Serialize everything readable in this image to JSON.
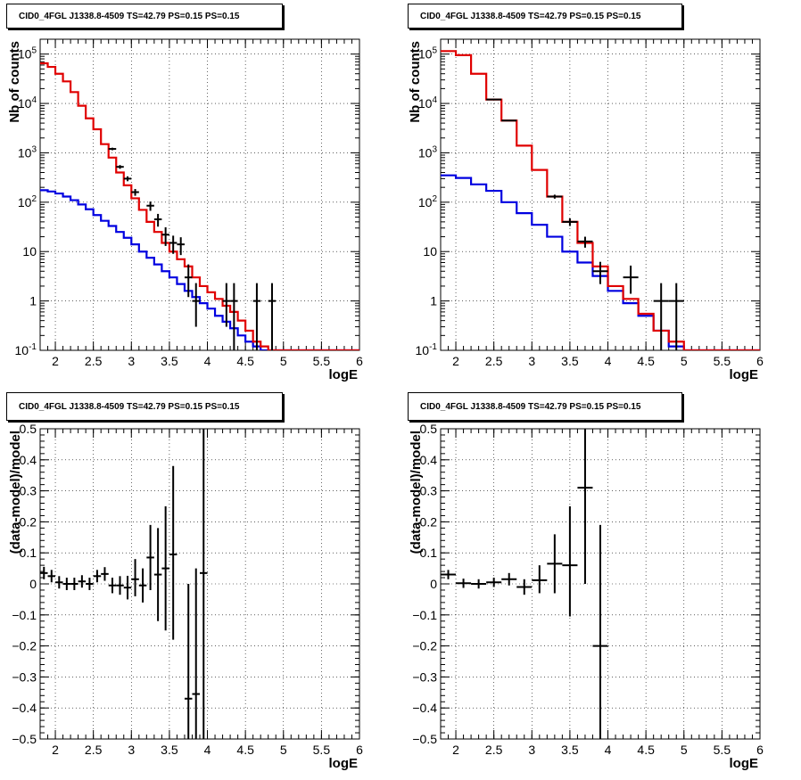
{
  "colors": {
    "data": "#000000",
    "total_model": "#e00000",
    "component_model": "#0000e0",
    "grid": "#000000"
  },
  "chart_data": [
    {
      "type": "line",
      "title": "CID0_4FGL J1338.8-4509 TS=42.79 PS=0.15 PS=0.15",
      "xlabel": "logE",
      "ylabel": "Nb of counts",
      "xlim": [
        1.8,
        6.0
      ],
      "ylim": [
        0.1,
        200000
      ],
      "ylog": true,
      "grid": true,
      "x_ticks": [
        "2",
        "2.5",
        "3",
        "3.5",
        "4",
        "4.5",
        "5",
        "5.5",
        "6"
      ],
      "y_ticks": [
        "10^-1",
        "1",
        "10",
        "10^2",
        "10^3",
        "10^4",
        "10^5"
      ],
      "bin_edges": [
        1.8,
        1.9,
        2.0,
        2.1,
        2.2,
        2.3,
        2.4,
        2.5,
        2.6,
        2.7,
        2.8,
        2.9,
        3.0,
        3.1,
        3.2,
        3.3,
        3.4,
        3.5,
        3.6,
        3.7,
        3.8,
        3.9,
        4.0,
        4.1,
        4.2,
        4.3,
        4.4,
        4.5,
        4.6,
        4.7,
        4.8,
        4.9,
        5.0,
        5.1,
        5.2,
        5.3,
        5.4,
        5.5,
        5.6,
        5.7,
        5.8,
        5.9,
        6.0
      ],
      "series": [
        {
          "name": "",
          "color": "#e00000",
          "values": [
            65000,
            55000,
            40000,
            28000,
            17000,
            9000,
            5000,
            3000,
            1500,
            800,
            400,
            220,
            120,
            70,
            40,
            25,
            15,
            10,
            7,
            5,
            3,
            2,
            1.5,
            1.1,
            0.8,
            0.6,
            0.4,
            0.25,
            0.15,
            0.12,
            0.1,
            0.1,
            0.1,
            0.1,
            0.1,
            0.1,
            0.1,
            0.1,
            0.1,
            0.1,
            0.1,
            0.1
          ]
        },
        {
          "name": "",
          "color": "#0000e0",
          "values": [
            175,
            165,
            150,
            130,
            110,
            90,
            72,
            55,
            42,
            33,
            25,
            19,
            14,
            10,
            7.5,
            5.5,
            4,
            3,
            2.2,
            1.6,
            1.2,
            0.9,
            0.7,
            0.5,
            0.38,
            0.28,
            0.2,
            0.15,
            0.12,
            0.1,
            0.1,
            0.1,
            0.1,
            0.1,
            0.1,
            0.1,
            0.1,
            0.1,
            0.1,
            0.1,
            0.1,
            0.1
          ]
        }
      ],
      "points": [
        {
          "x": 2.75,
          "y": 1200,
          "xerr": 0.05,
          "ylo": 1130,
          "yhi": 1270
        },
        {
          "x": 2.85,
          "y": 520,
          "xerr": 0.05,
          "ylo": 475,
          "yhi": 565
        },
        {
          "x": 2.95,
          "y": 300,
          "xerr": 0.05,
          "ylo": 266,
          "yhi": 334
        },
        {
          "x": 3.05,
          "y": 160,
          "xerr": 0.05,
          "ylo": 135,
          "yhi": 185
        },
        {
          "x": 3.25,
          "y": 85,
          "xerr": 0.05,
          "ylo": 67,
          "yhi": 103
        },
        {
          "x": 3.35,
          "y": 45,
          "xerr": 0.05,
          "ylo": 32,
          "yhi": 58
        },
        {
          "x": 3.45,
          "y": 22,
          "xerr": 0.05,
          "ylo": 13,
          "yhi": 31
        },
        {
          "x": 3.55,
          "y": 15,
          "xerr": 0.05,
          "ylo": 9,
          "yhi": 21
        },
        {
          "x": 3.65,
          "y": 14,
          "xerr": 0.05,
          "ylo": 8.5,
          "yhi": 19.5
        },
        {
          "x": 3.75,
          "y": 3,
          "xerr": 0.05,
          "ylo": 1.2,
          "yhi": 5.5
        },
        {
          "x": 3.85,
          "y": 1,
          "xerr": 0.05,
          "ylo": 0.3,
          "yhi": 2.3
        },
        {
          "x": 4.25,
          "y": 1,
          "xerr": 0.05,
          "ylo": 0.3,
          "yhi": 2.3
        },
        {
          "x": 4.35,
          "y": 1,
          "xerr": 0.05,
          "ylo": 0.1,
          "yhi": 2.3
        },
        {
          "x": 4.65,
          "y": 1,
          "xerr": 0.05,
          "ylo": 0.1,
          "yhi": 2.3
        },
        {
          "x": 4.85,
          "y": 1,
          "xerr": 0.05,
          "ylo": 0.1,
          "yhi": 2.3
        }
      ]
    },
    {
      "type": "line",
      "title": "CID0_4FGL J1338.8-4509 TS=42.79 PS=0.15 PS=0.15",
      "xlabel": "logE",
      "ylabel": "Nb of counts",
      "xlim": [
        1.8,
        6.0
      ],
      "ylim": [
        0.1,
        200000
      ],
      "ylog": true,
      "grid": true,
      "x_ticks": [
        "2",
        "2.5",
        "3",
        "3.5",
        "4",
        "4.5",
        "5",
        "5.5",
        "6"
      ],
      "y_ticks": [
        "10^-1",
        "1",
        "10",
        "10^2",
        "10^3",
        "10^4",
        "10^5"
      ],
      "bin_edges": [
        1.8,
        2.0,
        2.2,
        2.4,
        2.6,
        2.8,
        3.0,
        3.2,
        3.4,
        3.6,
        3.8,
        4.0,
        4.2,
        4.4,
        4.6,
        4.8,
        5.0,
        5.2,
        5.4,
        5.6,
        5.8,
        6.0
      ],
      "series": [
        {
          "name": "",
          "color": "#e00000",
          "values": [
            115000,
            95000,
            40000,
            12000,
            4500,
            1400,
            450,
            130,
            40,
            15,
            5,
            2,
            1.1,
            0.55,
            0.25,
            0.15,
            0.1,
            0.1,
            0.1,
            0.1,
            0.1
          ]
        },
        {
          "name": "",
          "color": "#0000e0",
          "values": [
            350,
            310,
            230,
            170,
            100,
            60,
            35,
            20,
            10,
            6,
            3.2,
            1.6,
            0.9,
            0.5,
            0.25,
            0.12,
            0.1,
            0.1,
            0.1,
            0.1,
            0.1
          ]
        }
      ],
      "points": [
        {
          "x": 2.5,
          "y": 12000,
          "xerr": 0.1,
          "ylo": 11800,
          "yhi": 12200
        },
        {
          "x": 2.7,
          "y": 4500,
          "xerr": 0.1,
          "ylo": 4400,
          "yhi": 4600
        },
        {
          "x": 3.3,
          "y": 130,
          "xerr": 0.1,
          "ylo": 118,
          "yhi": 142
        },
        {
          "x": 3.5,
          "y": 40,
          "xerr": 0.1,
          "ylo": 33,
          "yhi": 47
        },
        {
          "x": 3.7,
          "y": 16,
          "xerr": 0.1,
          "ylo": 12,
          "yhi": 20
        },
        {
          "x": 3.9,
          "y": 4,
          "xerr": 0.1,
          "ylo": 2.2,
          "yhi": 6.2
        },
        {
          "x": 4.3,
          "y": 3,
          "xerr": 0.1,
          "ylo": 1.4,
          "yhi": 5.2
        },
        {
          "x": 4.7,
          "y": 1,
          "xerr": 0.1,
          "ylo": 0.1,
          "yhi": 2.3
        },
        {
          "x": 4.9,
          "y": 1,
          "xerr": 0.1,
          "ylo": 0.1,
          "yhi": 2.3
        }
      ]
    },
    {
      "type": "scatter",
      "title": "CID0_4FGL J1338.8-4509 TS=42.79 PS=0.15 PS=0.15",
      "xlabel": "logE",
      "ylabel": "(data-model)/model",
      "xlim": [
        1.8,
        6.0
      ],
      "ylim": [
        -0.5,
        0.5
      ],
      "ylog": false,
      "grid": true,
      "x_ticks": [
        "2",
        "2.5",
        "3",
        "3.5",
        "4",
        "4.5",
        "5",
        "5.5",
        "6"
      ],
      "y_ticks": [
        "-0.5",
        "-0.4",
        "-0.3",
        "-0.2",
        "-0.1",
        "0",
        "0.1",
        "0.2",
        "0.3",
        "0.4",
        "0.5"
      ],
      "points": [
        {
          "x": 1.85,
          "y": 0.035,
          "xerr": 0.05,
          "ylo": 0.015,
          "yhi": 0.055
        },
        {
          "x": 1.95,
          "y": 0.025,
          "xerr": 0.05,
          "ylo": 0.005,
          "yhi": 0.045
        },
        {
          "x": 2.05,
          "y": 0.005,
          "xerr": 0.05,
          "ylo": -0.015,
          "yhi": 0.025
        },
        {
          "x": 2.15,
          "y": 0.0,
          "xerr": 0.05,
          "ylo": -0.02,
          "yhi": 0.02
        },
        {
          "x": 2.25,
          "y": 0.0,
          "xerr": 0.05,
          "ylo": -0.02,
          "yhi": 0.02
        },
        {
          "x": 2.35,
          "y": 0.008,
          "xerr": 0.05,
          "ylo": -0.012,
          "yhi": 0.028
        },
        {
          "x": 2.45,
          "y": 0.0,
          "xerr": 0.05,
          "ylo": -0.02,
          "yhi": 0.02
        },
        {
          "x": 2.55,
          "y": 0.025,
          "xerr": 0.05,
          "ylo": 0.005,
          "yhi": 0.045
        },
        {
          "x": 2.65,
          "y": 0.032,
          "xerr": 0.05,
          "ylo": 0.01,
          "yhi": 0.054
        },
        {
          "x": 2.75,
          "y": -0.005,
          "xerr": 0.05,
          "ylo": -0.03,
          "yhi": 0.02
        },
        {
          "x": 2.85,
          "y": -0.005,
          "xerr": 0.05,
          "ylo": -0.035,
          "yhi": 0.025
        },
        {
          "x": 2.95,
          "y": -0.012,
          "xerr": 0.05,
          "ylo": -0.05,
          "yhi": 0.026
        },
        {
          "x": 3.05,
          "y": 0.015,
          "xerr": 0.05,
          "ylo": -0.04,
          "yhi": 0.08
        },
        {
          "x": 3.15,
          "y": -0.005,
          "xerr": 0.05,
          "ylo": -0.06,
          "yhi": 0.05
        },
        {
          "x": 3.25,
          "y": 0.085,
          "xerr": 0.05,
          "ylo": -0.02,
          "yhi": 0.19
        },
        {
          "x": 3.35,
          "y": 0.03,
          "xerr": 0.05,
          "ylo": -0.12,
          "yhi": 0.18
        },
        {
          "x": 3.45,
          "y": 0.05,
          "xerr": 0.05,
          "ylo": -0.15,
          "yhi": 0.25
        },
        {
          "x": 3.55,
          "y": 0.095,
          "xerr": 0.05,
          "ylo": -0.18,
          "yhi": 0.38
        },
        {
          "x": 3.75,
          "y": -0.37,
          "xerr": 0.05,
          "ylo": -0.5,
          "yhi": 0.0
        },
        {
          "x": 3.85,
          "y": -0.355,
          "xerr": 0.05,
          "ylo": -0.5,
          "yhi": 0.05
        },
        {
          "x": 3.95,
          "y": 0.035,
          "xerr": 0.05,
          "ylo": -0.5,
          "yhi": 0.5
        }
      ]
    },
    {
      "type": "scatter",
      "title": "CID0_4FGL J1338.8-4509 TS=42.79 PS=0.15 PS=0.15",
      "xlabel": "logE",
      "ylabel": "(data-model)/model",
      "xlim": [
        1.8,
        6.0
      ],
      "ylim": [
        -0.5,
        0.5
      ],
      "ylog": false,
      "grid": true,
      "x_ticks": [
        "2",
        "2.5",
        "3",
        "3.5",
        "4",
        "4.5",
        "5",
        "5.5",
        "6"
      ],
      "y_ticks": [
        "-0.5",
        "-0.4",
        "-0.3",
        "-0.2",
        "-0.1",
        "0",
        "0.1",
        "0.2",
        "0.3",
        "0.4",
        "0.5"
      ],
      "points": [
        {
          "x": 1.9,
          "y": 0.03,
          "xerr": 0.1,
          "ylo": 0.015,
          "yhi": 0.045
        },
        {
          "x": 2.1,
          "y": 0.002,
          "xerr": 0.1,
          "ylo": -0.013,
          "yhi": 0.017
        },
        {
          "x": 2.3,
          "y": 0.0,
          "xerr": 0.1,
          "ylo": -0.015,
          "yhi": 0.015
        },
        {
          "x": 2.5,
          "y": 0.005,
          "xerr": 0.1,
          "ylo": -0.01,
          "yhi": 0.02
        },
        {
          "x": 2.7,
          "y": 0.015,
          "xerr": 0.1,
          "ylo": -0.005,
          "yhi": 0.035
        },
        {
          "x": 2.9,
          "y": -0.01,
          "xerr": 0.1,
          "ylo": -0.035,
          "yhi": 0.015
        },
        {
          "x": 3.1,
          "y": 0.012,
          "xerr": 0.1,
          "ylo": -0.03,
          "yhi": 0.06
        },
        {
          "x": 3.3,
          "y": 0.065,
          "xerr": 0.1,
          "ylo": -0.03,
          "yhi": 0.16
        },
        {
          "x": 3.5,
          "y": 0.06,
          "xerr": 0.1,
          "ylo": -0.105,
          "yhi": 0.25
        },
        {
          "x": 3.7,
          "y": 0.31,
          "xerr": 0.1,
          "ylo": 0.0,
          "yhi": 0.5
        },
        {
          "x": 3.9,
          "y": -0.2,
          "xerr": 0.1,
          "ylo": -0.5,
          "yhi": 0.19
        }
      ]
    }
  ]
}
